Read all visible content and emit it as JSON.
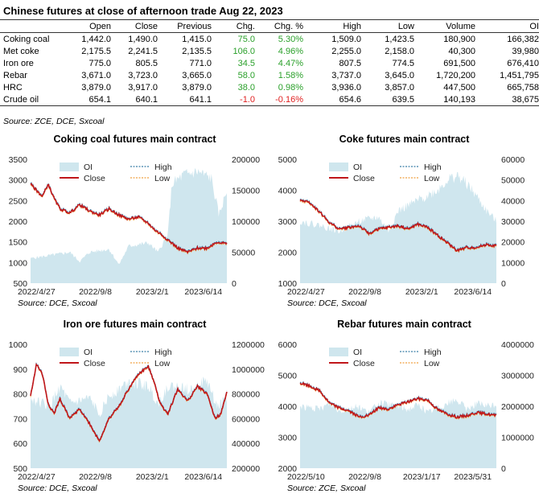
{
  "table": {
    "title": "Chinese futures at close of afternoon trade Aug 22, 2023",
    "headers": [
      "",
      "Open",
      "Close",
      "Previous",
      "Chg.",
      "Chg. %",
      "High",
      "Low",
      "Volume",
      "OI"
    ],
    "rows": [
      [
        "Coking coal",
        "1,442.0",
        "1,490.0",
        "1,415.0",
        "75.0",
        "5.30%",
        "1,509.0",
        "1,423.5",
        "180,900",
        "166,382"
      ],
      [
        "Met coke",
        "2,175.5",
        "2,241.5",
        "2,135.5",
        "106.0",
        "4.96%",
        "2,255.0",
        "2,158.0",
        "40,300",
        "39,980"
      ],
      [
        "Iron ore",
        "775.0",
        "805.5",
        "771.0",
        "34.5",
        "4.47%",
        "807.5",
        "774.5",
        "691,500",
        "676,410"
      ],
      [
        "Rebar",
        "3,671.0",
        "3,723.0",
        "3,665.0",
        "58.0",
        "1.58%",
        "3,737.0",
        "3,645.0",
        "1,720,200",
        "1,451,795"
      ],
      [
        "HRC",
        "3,879.0",
        "3,917.0",
        "3,879.0",
        "38.0",
        "0.98%",
        "3,936.0",
        "3,857.0",
        "447,500",
        "665,758"
      ],
      [
        "Crude oil",
        "654.1",
        "640.1",
        "641.1",
        "-1.0",
        "-0.16%",
        "654.6",
        "639.5",
        "140,193",
        "38,675"
      ]
    ],
    "source": "Source: ZCE, DCE, Sxcoal",
    "colors": {
      "positive": "#2aa02a",
      "negative": "#e02020"
    }
  },
  "chart_data": [
    {
      "type": "line",
      "title": "Coking coal futures main contract",
      "source": "Source: DCE, Sxcoal",
      "xticks": [
        "2022/4/27",
        "2022/9/8",
        "2023/2/1",
        "2023/6/14"
      ],
      "x_start": "2022/4/27",
      "x_end": "2023/8/22",
      "left_axis": {
        "ticks": [
          500,
          1000,
          1500,
          2000,
          2500,
          3000,
          3500
        ],
        "ylim": [
          500,
          3500
        ]
      },
      "right_axis": {
        "ticks": [
          0,
          50000,
          100000,
          150000,
          200000
        ],
        "labels": [
          "0",
          "50000",
          "100000",
          "150000",
          "200000"
        ],
        "ylim": [
          0,
          200000
        ]
      },
      "legend": [
        "OI",
        "High",
        "Close",
        "Low"
      ],
      "price_points": [
        [
          0,
          2900
        ],
        [
          0.03,
          2750
        ],
        [
          0.06,
          2600
        ],
        [
          0.09,
          2900
        ],
        [
          0.12,
          2550
        ],
        [
          0.15,
          2300
        ],
        [
          0.2,
          2200
        ],
        [
          0.25,
          2400
        ],
        [
          0.3,
          2250
        ],
        [
          0.35,
          2150
        ],
        [
          0.4,
          2300
        ],
        [
          0.45,
          2150
        ],
        [
          0.5,
          2050
        ],
        [
          0.55,
          2100
        ],
        [
          0.6,
          1950
        ],
        [
          0.63,
          1800
        ],
        [
          0.66,
          1700
        ],
        [
          0.7,
          1550
        ],
        [
          0.75,
          1350
        ],
        [
          0.8,
          1250
        ],
        [
          0.85,
          1350
        ],
        [
          0.9,
          1350
        ],
        [
          0.95,
          1500
        ],
        [
          1,
          1450
        ]
      ],
      "oi_points": [
        [
          0,
          40000
        ],
        [
          0.1,
          45000
        ],
        [
          0.2,
          50000
        ],
        [
          0.25,
          35000
        ],
        [
          0.3,
          50000
        ],
        [
          0.4,
          55000
        ],
        [
          0.45,
          30000
        ],
        [
          0.5,
          60000
        ],
        [
          0.6,
          65000
        ],
        [
          0.65,
          50000
        ],
        [
          0.7,
          80000
        ],
        [
          0.72,
          160000
        ],
        [
          0.78,
          175000
        ],
        [
          0.85,
          180000
        ],
        [
          0.92,
          170000
        ],
        [
          0.96,
          110000
        ],
        [
          1,
          150000
        ]
      ]
    },
    {
      "type": "line",
      "title": "Coke futures main contract",
      "source": "Source: DCE, Sxcoal",
      "xticks": [
        "2022/4/27",
        "2022/9/8",
        "2023/2/1",
        "2023/6/14"
      ],
      "x_start": "2022/4/27",
      "x_end": "2023/8/22",
      "left_axis": {
        "ticks": [
          1000,
          2000,
          3000,
          4000,
          5000
        ],
        "ylim": [
          1000,
          5000
        ]
      },
      "right_axis": {
        "ticks": [
          0,
          10000,
          20000,
          30000,
          40000,
          50000,
          60000
        ],
        "labels": [
          "0",
          "10000",
          "20000",
          "30000",
          "40000",
          "50000",
          "60000"
        ],
        "ylim": [
          0,
          60000
        ]
      },
      "legend": [
        "OI",
        "High",
        "Close",
        "Low"
      ],
      "price_points": [
        [
          0,
          3700
        ],
        [
          0.05,
          3600
        ],
        [
          0.1,
          3300
        ],
        [
          0.15,
          2950
        ],
        [
          0.2,
          2750
        ],
        [
          0.3,
          2850
        ],
        [
          0.35,
          2600
        ],
        [
          0.4,
          2750
        ],
        [
          0.5,
          2850
        ],
        [
          0.55,
          2750
        ],
        [
          0.6,
          2900
        ],
        [
          0.65,
          2800
        ],
        [
          0.7,
          2550
        ],
        [
          0.75,
          2300
        ],
        [
          0.8,
          2050
        ],
        [
          0.85,
          2150
        ],
        [
          0.9,
          2150
        ],
        [
          0.95,
          2250
        ],
        [
          1,
          2200
        ]
      ],
      "oi_points": [
        [
          0,
          30000
        ],
        [
          0.1,
          28000
        ],
        [
          0.2,
          25000
        ],
        [
          0.3,
          30000
        ],
        [
          0.4,
          32000
        ],
        [
          0.45,
          25000
        ],
        [
          0.5,
          35000
        ],
        [
          0.6,
          40000
        ],
        [
          0.7,
          45000
        ],
        [
          0.75,
          50000
        ],
        [
          0.8,
          52000
        ],
        [
          0.85,
          48000
        ],
        [
          0.9,
          42000
        ],
        [
          0.95,
          35000
        ],
        [
          1,
          30000
        ]
      ]
    },
    {
      "type": "line",
      "title": "Iron ore futures main contract",
      "source": "Source: DCE, Sxcoal",
      "xticks": [
        "2022/4/27",
        "2022/9/8",
        "2023/2/1",
        "2023/6/14"
      ],
      "x_start": "2022/4/27",
      "x_end": "2023/8/22",
      "left_axis": {
        "ticks": [
          500,
          600,
          700,
          800,
          900,
          1000
        ],
        "ylim": [
          500,
          1000
        ]
      },
      "right_axis": {
        "ticks": [
          200000,
          400000,
          600000,
          800000,
          1000000,
          1200000
        ],
        "labels": [
          "200000",
          "400000",
          "600000",
          "800000",
          "1000000",
          "1200000"
        ],
        "ylim": [
          200000,
          1200000
        ]
      },
      "legend": [
        "OI",
        "High",
        "Close",
        "Low"
      ],
      "price_points": [
        [
          0,
          790
        ],
        [
          0.03,
          920
        ],
        [
          0.06,
          880
        ],
        [
          0.09,
          760
        ],
        [
          0.12,
          720
        ],
        [
          0.15,
          780
        ],
        [
          0.2,
          700
        ],
        [
          0.25,
          740
        ],
        [
          0.3,
          680
        ],
        [
          0.35,
          610
        ],
        [
          0.4,
          700
        ],
        [
          0.45,
          750
        ],
        [
          0.5,
          820
        ],
        [
          0.55,
          880
        ],
        [
          0.6,
          910
        ],
        [
          0.63,
          850
        ],
        [
          0.66,
          760
        ],
        [
          0.7,
          720
        ],
        [
          0.75,
          820
        ],
        [
          0.8,
          770
        ],
        [
          0.85,
          830
        ],
        [
          0.9,
          800
        ],
        [
          0.94,
          700
        ],
        [
          0.97,
          720
        ],
        [
          1,
          810
        ]
      ],
      "oi_points": [
        [
          0,
          760000
        ],
        [
          0.1,
          700000
        ],
        [
          0.15,
          860000
        ],
        [
          0.2,
          720000
        ],
        [
          0.3,
          760000
        ],
        [
          0.35,
          640000
        ],
        [
          0.4,
          780000
        ],
        [
          0.5,
          900000
        ],
        [
          0.6,
          860000
        ],
        [
          0.65,
          720000
        ],
        [
          0.7,
          860000
        ],
        [
          0.8,
          840000
        ],
        [
          0.9,
          900000
        ],
        [
          0.95,
          700000
        ],
        [
          1,
          760000
        ]
      ]
    },
    {
      "type": "line",
      "title": "Rebar futures main contract",
      "source": "Source: ZCE, Sxcoal",
      "xticks": [
        "2022/5/10",
        "2022/9/8",
        "2023/1/17",
        "2023/5/31"
      ],
      "x_start": "2022/5/10",
      "x_end": "2023/8/22",
      "left_axis": {
        "ticks": [
          2000,
          3000,
          4000,
          5000,
          6000
        ],
        "ylim": [
          2000,
          6000
        ]
      },
      "right_axis": {
        "ticks": [
          0,
          1000000,
          2000000,
          3000000,
          4000000
        ],
        "labels": [
          "0",
          "1000000",
          "2000000",
          "3000000",
          "4000000"
        ],
        "ylim": [
          0,
          4000000
        ]
      },
      "legend": [
        "OI",
        "High",
        "Close",
        "Low"
      ],
      "price_points": [
        [
          0,
          4750
        ],
        [
          0.05,
          4650
        ],
        [
          0.1,
          4500
        ],
        [
          0.15,
          4100
        ],
        [
          0.2,
          3950
        ],
        [
          0.25,
          3850
        ],
        [
          0.3,
          3650
        ],
        [
          0.35,
          3700
        ],
        [
          0.4,
          3950
        ],
        [
          0.45,
          3900
        ],
        [
          0.5,
          4050
        ],
        [
          0.55,
          4150
        ],
        [
          0.6,
          4250
        ],
        [
          0.65,
          4200
        ],
        [
          0.7,
          3900
        ],
        [
          0.75,
          3750
        ],
        [
          0.8,
          3650
        ],
        [
          0.85,
          3700
        ],
        [
          0.9,
          3800
        ],
        [
          0.95,
          3750
        ],
        [
          1,
          3700
        ]
      ],
      "oi_points": [
        [
          0,
          2000000
        ],
        [
          0.1,
          1900000
        ],
        [
          0.15,
          2100000
        ],
        [
          0.2,
          1850000
        ],
        [
          0.3,
          2000000
        ],
        [
          0.35,
          1800000
        ],
        [
          0.4,
          2100000
        ],
        [
          0.5,
          2000000
        ],
        [
          0.55,
          1900000
        ],
        [
          0.6,
          2050000
        ],
        [
          0.65,
          1800000
        ],
        [
          0.7,
          1950000
        ],
        [
          0.75,
          2100000
        ],
        [
          0.8,
          2200000
        ],
        [
          0.85,
          1900000
        ],
        [
          0.9,
          2100000
        ],
        [
          0.95,
          2000000
        ],
        [
          1,
          2050000
        ]
      ]
    }
  ]
}
